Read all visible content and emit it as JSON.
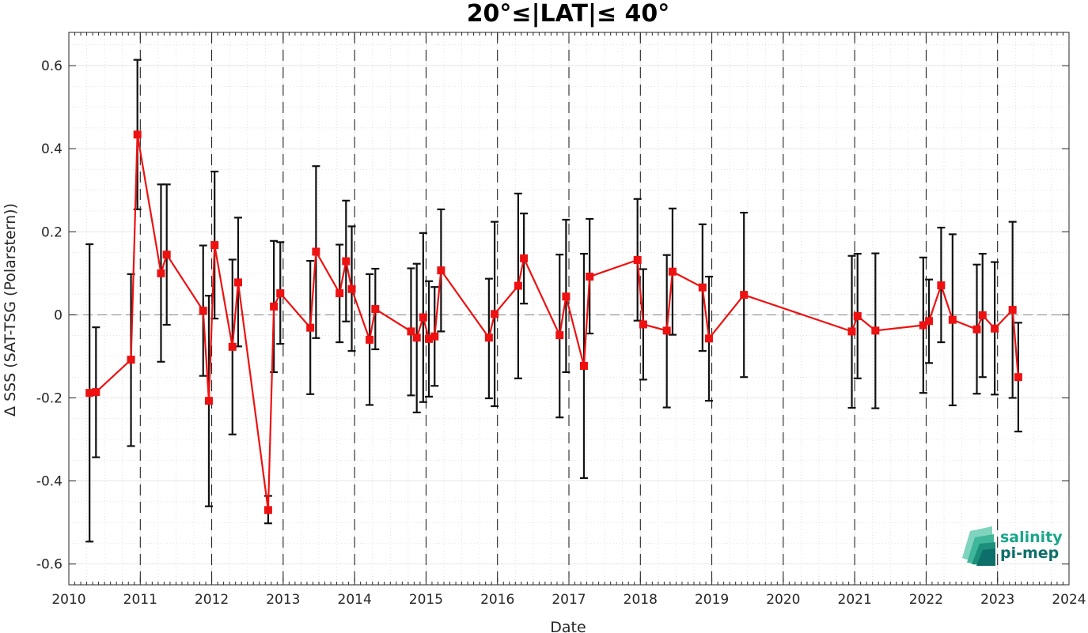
{
  "chart_data": {
    "type": "line",
    "title": "20°≤|LAT|≤ 40°",
    "xlabel": "Date",
    "ylabel": "Δ SSS (SAT-TSG (Polarstern))",
    "xlim": [
      2010,
      2024
    ],
    "ylim": [
      -0.65,
      0.68
    ],
    "x_ticks": [
      2010,
      2011,
      2012,
      2013,
      2014,
      2015,
      2016,
      2017,
      2018,
      2019,
      2020,
      2021,
      2022,
      2023,
      2024
    ],
    "y_ticks": [
      -0.6,
      -0.4,
      -0.2,
      0,
      0.2,
      0.4,
      0.6
    ],
    "y_tick_labels": [
      "-0.6",
      "-0.4",
      "-0.2",
      "0",
      "0.2",
      "0.4",
      "0.6"
    ],
    "year_boundaries": [
      2011,
      2012,
      2013,
      2014,
      2015,
      2016,
      2017,
      2018,
      2019,
      2020,
      2021,
      2022,
      2023
    ],
    "zero_line": 0,
    "grid": true,
    "series": [
      {
        "color": "#ee1111",
        "errorbar_color": "#111111",
        "marker": "square",
        "points": [
          {
            "x": 2010.29,
            "y": -0.188,
            "lo": -0.546,
            "hi": 0.17
          },
          {
            "x": 2010.38,
            "y": -0.186,
            "lo": -0.343,
            "hi": -0.03
          },
          {
            "x": 2010.87,
            "y": -0.108,
            "lo": -0.316,
            "hi": 0.098
          },
          {
            "x": 2010.96,
            "y": 0.434,
            "lo": 0.254,
            "hi": 0.614
          },
          {
            "x": 2011.29,
            "y": 0.1,
            "lo": -0.113,
            "hi": 0.314
          },
          {
            "x": 2011.37,
            "y": 0.145,
            "lo": -0.024,
            "hi": 0.314
          },
          {
            "x": 2011.88,
            "y": 0.01,
            "lo": -0.147,
            "hi": 0.167
          },
          {
            "x": 2011.96,
            "y": -0.207,
            "lo": -0.461,
            "hi": 0.046
          },
          {
            "x": 2012.04,
            "y": 0.168,
            "lo": -0.009,
            "hi": 0.345
          },
          {
            "x": 2012.29,
            "y": -0.077,
            "lo": -0.288,
            "hi": 0.133
          },
          {
            "x": 2012.37,
            "y": 0.078,
            "lo": -0.076,
            "hi": 0.234
          },
          {
            "x": 2012.79,
            "y": -0.47,
            "lo": -0.502,
            "hi": -0.436
          },
          {
            "x": 2012.87,
            "y": 0.02,
            "lo": -0.138,
            "hi": 0.178
          },
          {
            "x": 2012.96,
            "y": 0.052,
            "lo": -0.07,
            "hi": 0.175
          },
          {
            "x": 2013.38,
            "y": -0.031,
            "lo": -0.191,
            "hi": 0.13
          },
          {
            "x": 2013.46,
            "y": 0.152,
            "lo": -0.056,
            "hi": 0.358
          },
          {
            "x": 2013.79,
            "y": 0.052,
            "lo": -0.066,
            "hi": 0.169
          },
          {
            "x": 2013.88,
            "y": 0.129,
            "lo": -0.016,
            "hi": 0.275
          },
          {
            "x": 2013.96,
            "y": 0.062,
            "lo": -0.087,
            "hi": 0.213
          },
          {
            "x": 2014.21,
            "y": -0.06,
            "lo": -0.217,
            "hi": 0.098
          },
          {
            "x": 2014.29,
            "y": 0.014,
            "lo": -0.083,
            "hi": 0.111
          },
          {
            "x": 2014.79,
            "y": -0.04,
            "lo": -0.194,
            "hi": 0.112
          },
          {
            "x": 2014.87,
            "y": -0.055,
            "lo": -0.235,
            "hi": 0.123
          },
          {
            "x": 2014.96,
            "y": -0.006,
            "lo": -0.21,
            "hi": 0.197
          },
          {
            "x": 2015.04,
            "y": -0.058,
            "lo": -0.197,
            "hi": 0.081
          },
          {
            "x": 2015.12,
            "y": -0.052,
            "lo": -0.171,
            "hi": 0.067
          },
          {
            "x": 2015.21,
            "y": 0.107,
            "lo": -0.04,
            "hi": 0.254
          },
          {
            "x": 2015.88,
            "y": -0.055,
            "lo": -0.201,
            "hi": 0.087
          },
          {
            "x": 2015.96,
            "y": 0.002,
            "lo": -0.22,
            "hi": 0.224
          },
          {
            "x": 2016.29,
            "y": 0.07,
            "lo": -0.153,
            "hi": 0.292
          },
          {
            "x": 2016.37,
            "y": 0.136,
            "lo": 0.027,
            "hi": 0.244
          },
          {
            "x": 2016.87,
            "y": -0.049,
            "lo": -0.247,
            "hi": 0.145
          },
          {
            "x": 2016.96,
            "y": 0.044,
            "lo": -0.138,
            "hi": 0.229
          },
          {
            "x": 2017.21,
            "y": -0.123,
            "lo": -0.393,
            "hi": 0.147
          },
          {
            "x": 2017.29,
            "y": 0.092,
            "lo": -0.045,
            "hi": 0.231
          },
          {
            "x": 2017.96,
            "y": 0.132,
            "lo": -0.014,
            "hi": 0.279
          },
          {
            "x": 2018.04,
            "y": -0.023,
            "lo": -0.156,
            "hi": 0.11
          },
          {
            "x": 2018.37,
            "y": -0.038,
            "lo": -0.223,
            "hi": 0.144
          },
          {
            "x": 2018.45,
            "y": 0.104,
            "lo": -0.048,
            "hi": 0.256
          },
          {
            "x": 2018.87,
            "y": 0.066,
            "lo": -0.087,
            "hi": 0.218
          },
          {
            "x": 2018.96,
            "y": -0.057,
            "lo": -0.207,
            "hi": 0.092
          },
          {
            "x": 2019.45,
            "y": 0.048,
            "lo": -0.15,
            "hi": 0.246
          },
          {
            "x": 2020.96,
            "y": -0.04,
            "lo": -0.224,
            "hi": 0.142
          },
          {
            "x": 2021.04,
            "y": -0.003,
            "lo": -0.153,
            "hi": 0.147
          },
          {
            "x": 2021.29,
            "y": -0.038,
            "lo": -0.225,
            "hi": 0.148
          },
          {
            "x": 2021.96,
            "y": -0.025,
            "lo": -0.188,
            "hi": 0.138
          },
          {
            "x": 2022.04,
            "y": -0.015,
            "lo": -0.116,
            "hi": 0.085
          },
          {
            "x": 2022.21,
            "y": 0.071,
            "lo": -0.066,
            "hi": 0.21
          },
          {
            "x": 2022.37,
            "y": -0.012,
            "lo": -0.218,
            "hi": 0.194
          },
          {
            "x": 2022.71,
            "y": -0.035,
            "lo": -0.19,
            "hi": 0.121
          },
          {
            "x": 2022.79,
            "y": -0.001,
            "lo": -0.15,
            "hi": 0.147
          },
          {
            "x": 2022.96,
            "y": -0.033,
            "lo": -0.192,
            "hi": 0.127
          },
          {
            "x": 2023.21,
            "y": 0.012,
            "lo": -0.2,
            "hi": 0.224
          },
          {
            "x": 2023.29,
            "y": -0.15,
            "lo": -0.281,
            "hi": -0.019
          }
        ]
      }
    ]
  },
  "logo": {
    "line1": "salinity",
    "line2": "pi-mep",
    "color1": "#1aa58a",
    "color2": "#0e6e6a"
  }
}
